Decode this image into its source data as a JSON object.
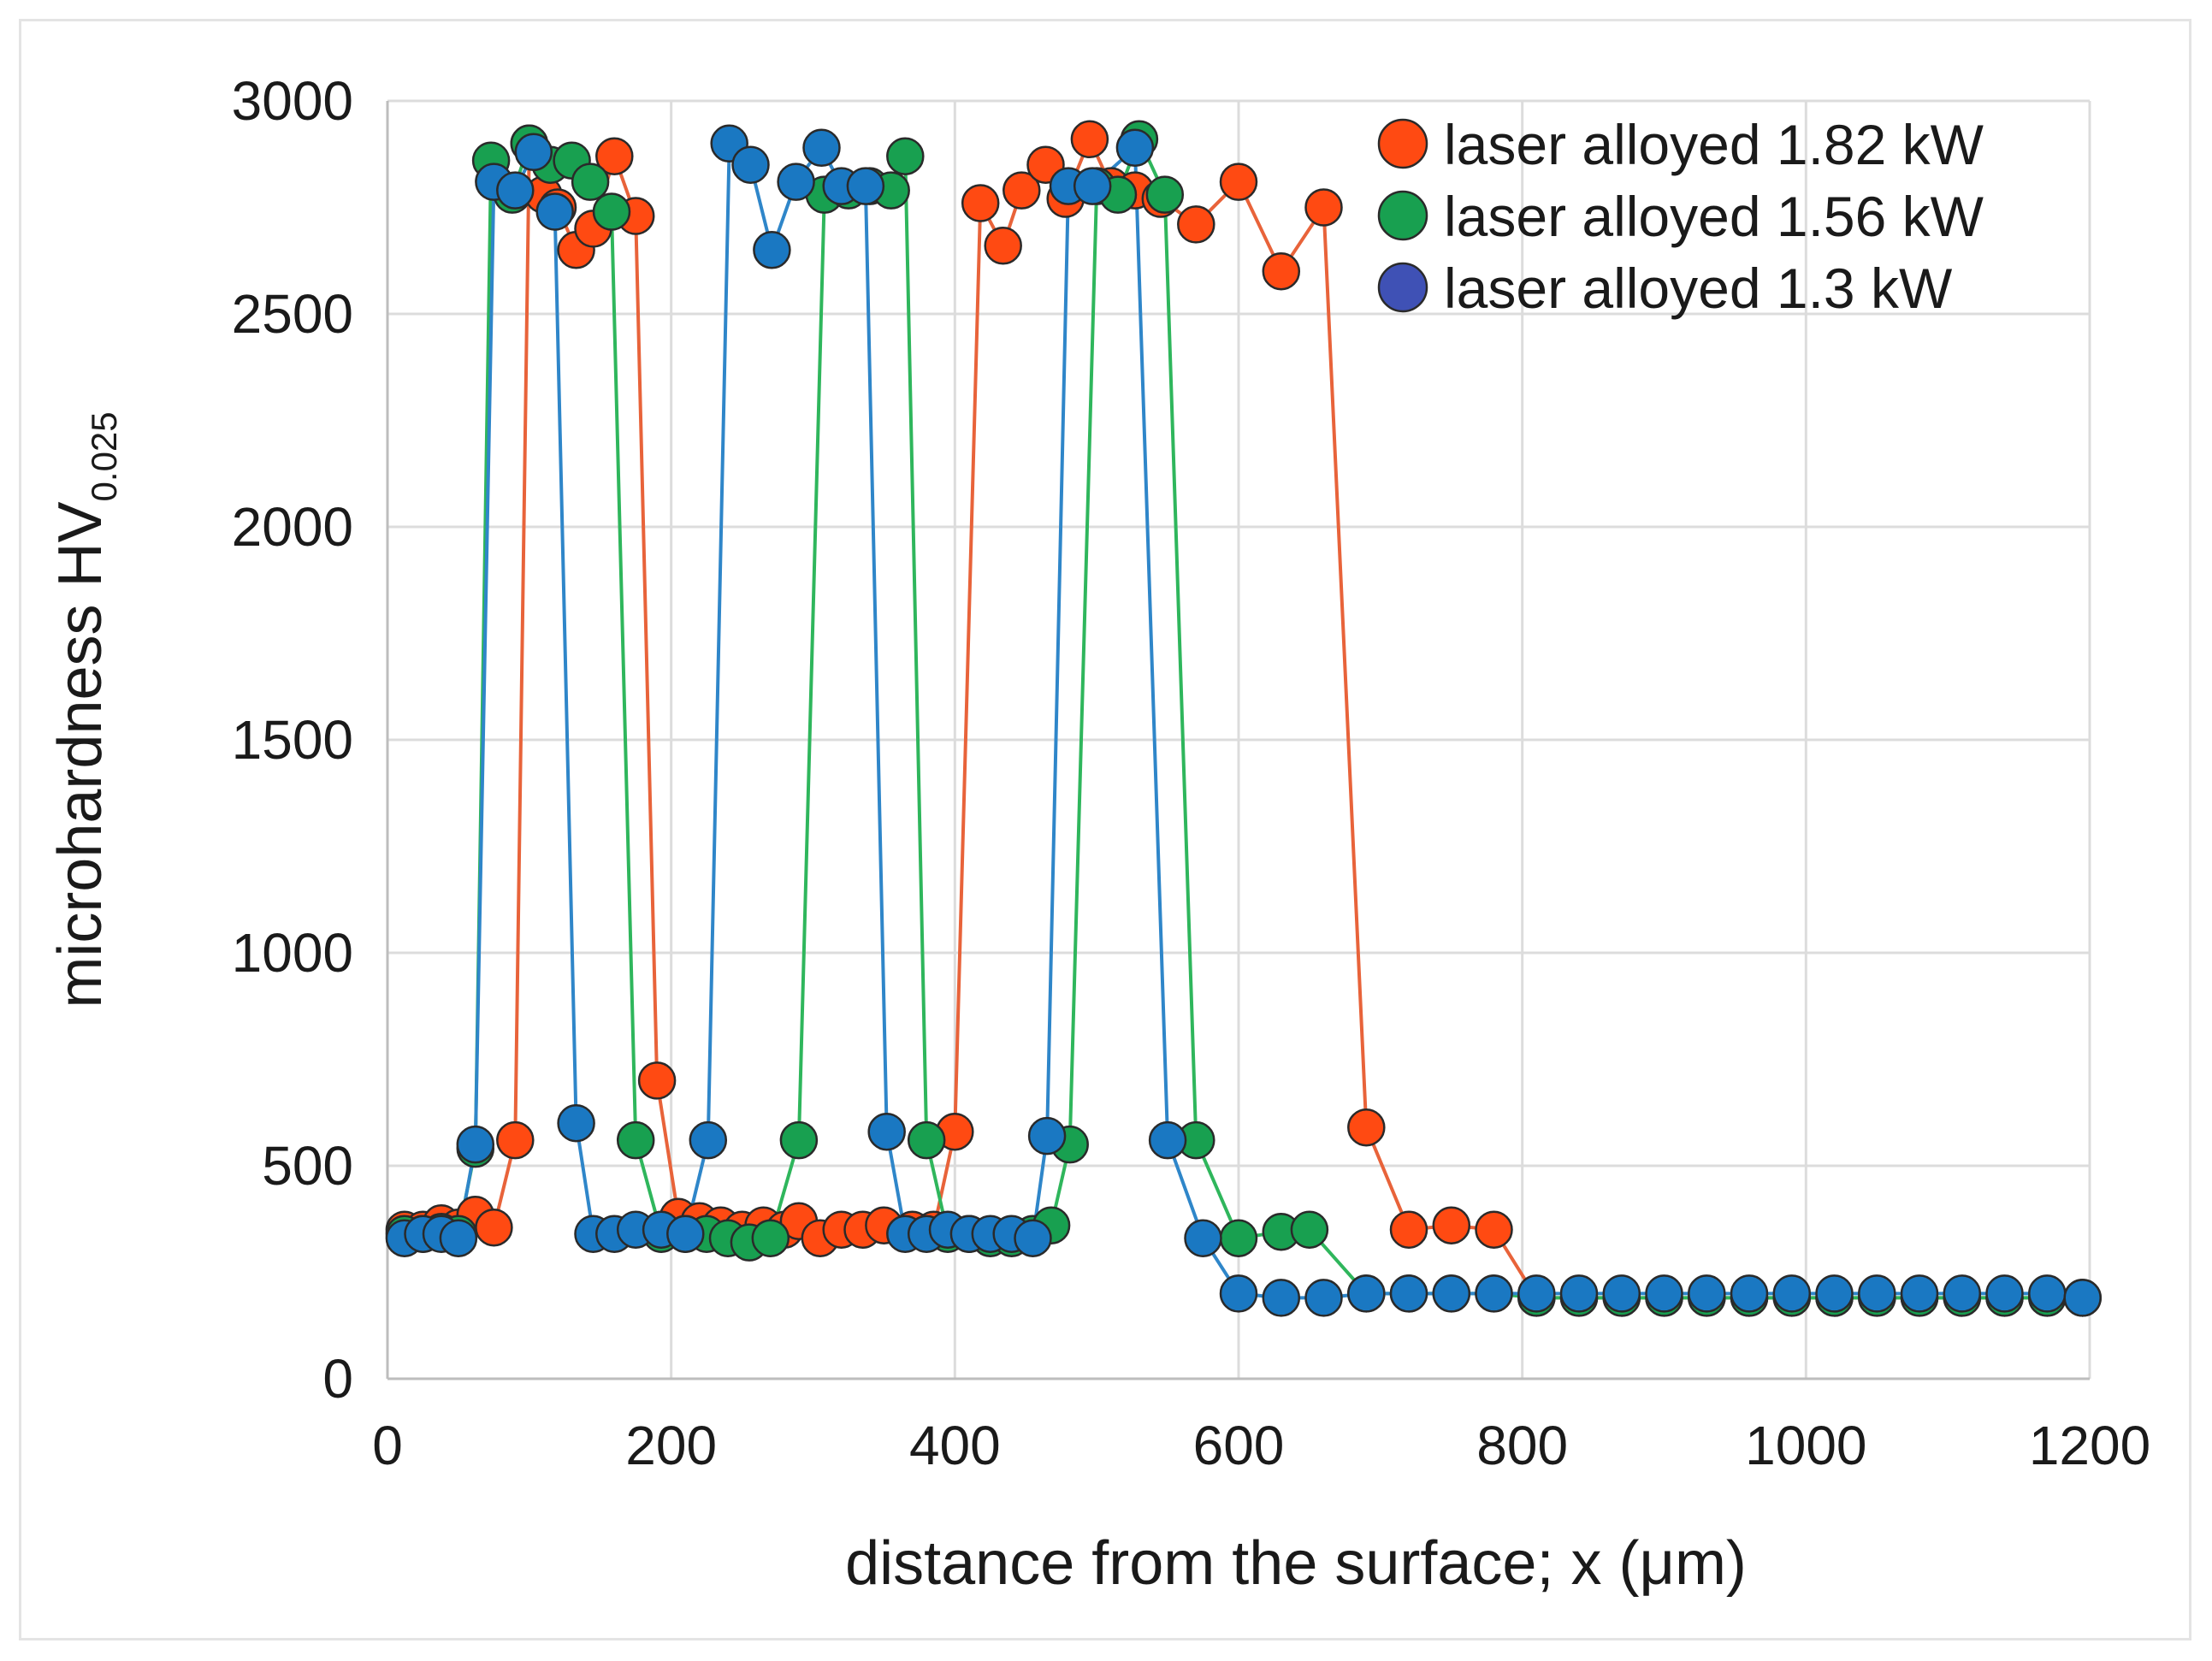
{
  "chart_data": {
    "type": "line",
    "title": "",
    "xlabel": "distance from the surface; x (μm)",
    "ylabel_main": "microhardness HV",
    "ylabel_sub": "0.025",
    "xlim": [
      0,
      1200
    ],
    "ylim": [
      0,
      3000
    ],
    "xticks": [
      "0",
      "200",
      "400",
      "600",
      "800",
      "1000",
      "1200"
    ],
    "yticks": [
      "0",
      "500",
      "1000",
      "1500",
      "2000",
      "2500",
      "3000"
    ],
    "grid": true,
    "legend_position": "top-right",
    "series": [
      {
        "name": "laser alloyed 1.82 kW",
        "color": "#ff4a12",
        "line_color": "#e8633a",
        "points": [
          [
            12,
            350
          ],
          [
            25,
            350
          ],
          [
            38,
            365
          ],
          [
            50,
            355
          ],
          [
            62,
            385
          ],
          [
            75,
            355
          ],
          [
            90,
            560
          ],
          [
            100,
            2900
          ],
          [
            110,
            2780
          ],
          [
            120,
            2750
          ],
          [
            133,
            2650
          ],
          [
            145,
            2700
          ],
          [
            160,
            2870
          ],
          [
            175,
            2730
          ],
          [
            190,
            700
          ],
          [
            205,
            380
          ],
          [
            220,
            370
          ],
          [
            235,
            360
          ],
          [
            250,
            350
          ],
          [
            265,
            360
          ],
          [
            280,
            350
          ],
          [
            290,
            370
          ],
          [
            305,
            330
          ],
          [
            320,
            350
          ],
          [
            335,
            350
          ],
          [
            350,
            360
          ],
          [
            370,
            350
          ],
          [
            385,
            350
          ],
          [
            400,
            580
          ],
          [
            418,
            2760
          ],
          [
            434,
            2660
          ],
          [
            447,
            2790
          ],
          [
            464,
            2850
          ],
          [
            478,
            2770
          ],
          [
            495,
            2910
          ],
          [
            510,
            2800
          ],
          [
            527,
            2790
          ],
          [
            545,
            2770
          ],
          [
            570,
            2710
          ],
          [
            600,
            2810
          ],
          [
            630,
            2600
          ],
          [
            660,
            2750
          ],
          [
            690,
            590
          ],
          [
            720,
            350
          ],
          [
            750,
            360
          ],
          [
            780,
            350
          ],
          [
            810,
            190
          ],
          [
            840,
            190
          ],
          [
            870,
            190
          ],
          [
            900,
            190
          ],
          [
            930,
            190
          ],
          [
            960,
            190
          ],
          [
            990,
            190
          ],
          [
            1020,
            190
          ],
          [
            1050,
            190
          ],
          [
            1080,
            190
          ],
          [
            1110,
            190
          ],
          [
            1140,
            190
          ],
          [
            1170,
            190
          ],
          [
            1195,
            190
          ]
        ]
      },
      {
        "name": "laser alloyed 1.56 kW",
        "color": "#18a050",
        "line_color": "#2fb65c",
        "points": [
          [
            12,
            340
          ],
          [
            25,
            340
          ],
          [
            38,
            345
          ],
          [
            50,
            340
          ],
          [
            62,
            540
          ],
          [
            73,
            2860
          ],
          [
            88,
            2780
          ],
          [
            100,
            2900
          ],
          [
            115,
            2850
          ],
          [
            130,
            2860
          ],
          [
            143,
            2810
          ],
          [
            158,
            2740
          ],
          [
            175,
            560
          ],
          [
            193,
            340
          ],
          [
            210,
            340
          ],
          [
            225,
            340
          ],
          [
            240,
            330
          ],
          [
            255,
            320
          ],
          [
            270,
            330
          ],
          [
            290,
            560
          ],
          [
            308,
            2780
          ],
          [
            325,
            2790
          ],
          [
            340,
            2800
          ],
          [
            355,
            2790
          ],
          [
            365,
            2870
          ],
          [
            380,
            560
          ],
          [
            395,
            340
          ],
          [
            410,
            340
          ],
          [
            425,
            330
          ],
          [
            440,
            330
          ],
          [
            455,
            340
          ],
          [
            468,
            360
          ],
          [
            481,
            550
          ],
          [
            500,
            2800
          ],
          [
            515,
            2780
          ],
          [
            530,
            2910
          ],
          [
            548,
            2780
          ],
          [
            570,
            560
          ],
          [
            600,
            330
          ],
          [
            630,
            345
          ],
          [
            650,
            350
          ],
          [
            690,
            200
          ],
          [
            720,
            200
          ],
          [
            750,
            200
          ],
          [
            780,
            200
          ],
          [
            810,
            190
          ],
          [
            840,
            190
          ],
          [
            870,
            190
          ],
          [
            900,
            190
          ],
          [
            930,
            190
          ],
          [
            960,
            190
          ],
          [
            990,
            190
          ],
          [
            1020,
            190
          ],
          [
            1050,
            190
          ],
          [
            1080,
            190
          ],
          [
            1110,
            190
          ],
          [
            1140,
            190
          ],
          [
            1170,
            190
          ],
          [
            1195,
            190
          ]
        ]
      },
      {
        "name": "laser alloyed 1.3 kW",
        "color": "#1a78c2",
        "line_color": "#2f86c9",
        "points": [
          [
            12,
            330
          ],
          [
            25,
            340
          ],
          [
            38,
            340
          ],
          [
            50,
            330
          ],
          [
            62,
            550
          ],
          [
            75,
            2810
          ],
          [
            90,
            2790
          ],
          [
            103,
            2880
          ],
          [
            118,
            2740
          ],
          [
            133,
            600
          ],
          [
            145,
            340
          ],
          [
            160,
            340
          ],
          [
            175,
            350
          ],
          [
            193,
            350
          ],
          [
            210,
            340
          ],
          [
            226,
            560
          ],
          [
            241,
            2900
          ],
          [
            256,
            2850
          ],
          [
            271,
            2650
          ],
          [
            288,
            2810
          ],
          [
            306,
            2890
          ],
          [
            320,
            2800
          ],
          [
            337,
            2800
          ],
          [
            352,
            580
          ],
          [
            365,
            340
          ],
          [
            380,
            340
          ],
          [
            395,
            350
          ],
          [
            410,
            340
          ],
          [
            425,
            340
          ],
          [
            440,
            340
          ],
          [
            455,
            330
          ],
          [
            465,
            570
          ],
          [
            480,
            2800
          ],
          [
            497,
            2800
          ],
          [
            527,
            2890
          ],
          [
            550,
            560
          ],
          [
            575,
            330
          ],
          [
            600,
            200
          ],
          [
            630,
            190
          ],
          [
            660,
            190
          ],
          [
            690,
            200
          ],
          [
            720,
            200
          ],
          [
            750,
            200
          ],
          [
            780,
            200
          ],
          [
            810,
            200
          ],
          [
            840,
            200
          ],
          [
            870,
            200
          ],
          [
            900,
            200
          ],
          [
            930,
            200
          ],
          [
            960,
            200
          ],
          [
            990,
            200
          ],
          [
            1020,
            200
          ],
          [
            1050,
            200
          ],
          [
            1080,
            200
          ],
          [
            1110,
            200
          ],
          [
            1140,
            200
          ],
          [
            1170,
            200
          ],
          [
            1195,
            190
          ]
        ]
      }
    ],
    "legend_marker_colors": [
      "#ff4a12",
      "#18a050",
      "#3f51b5"
    ]
  }
}
